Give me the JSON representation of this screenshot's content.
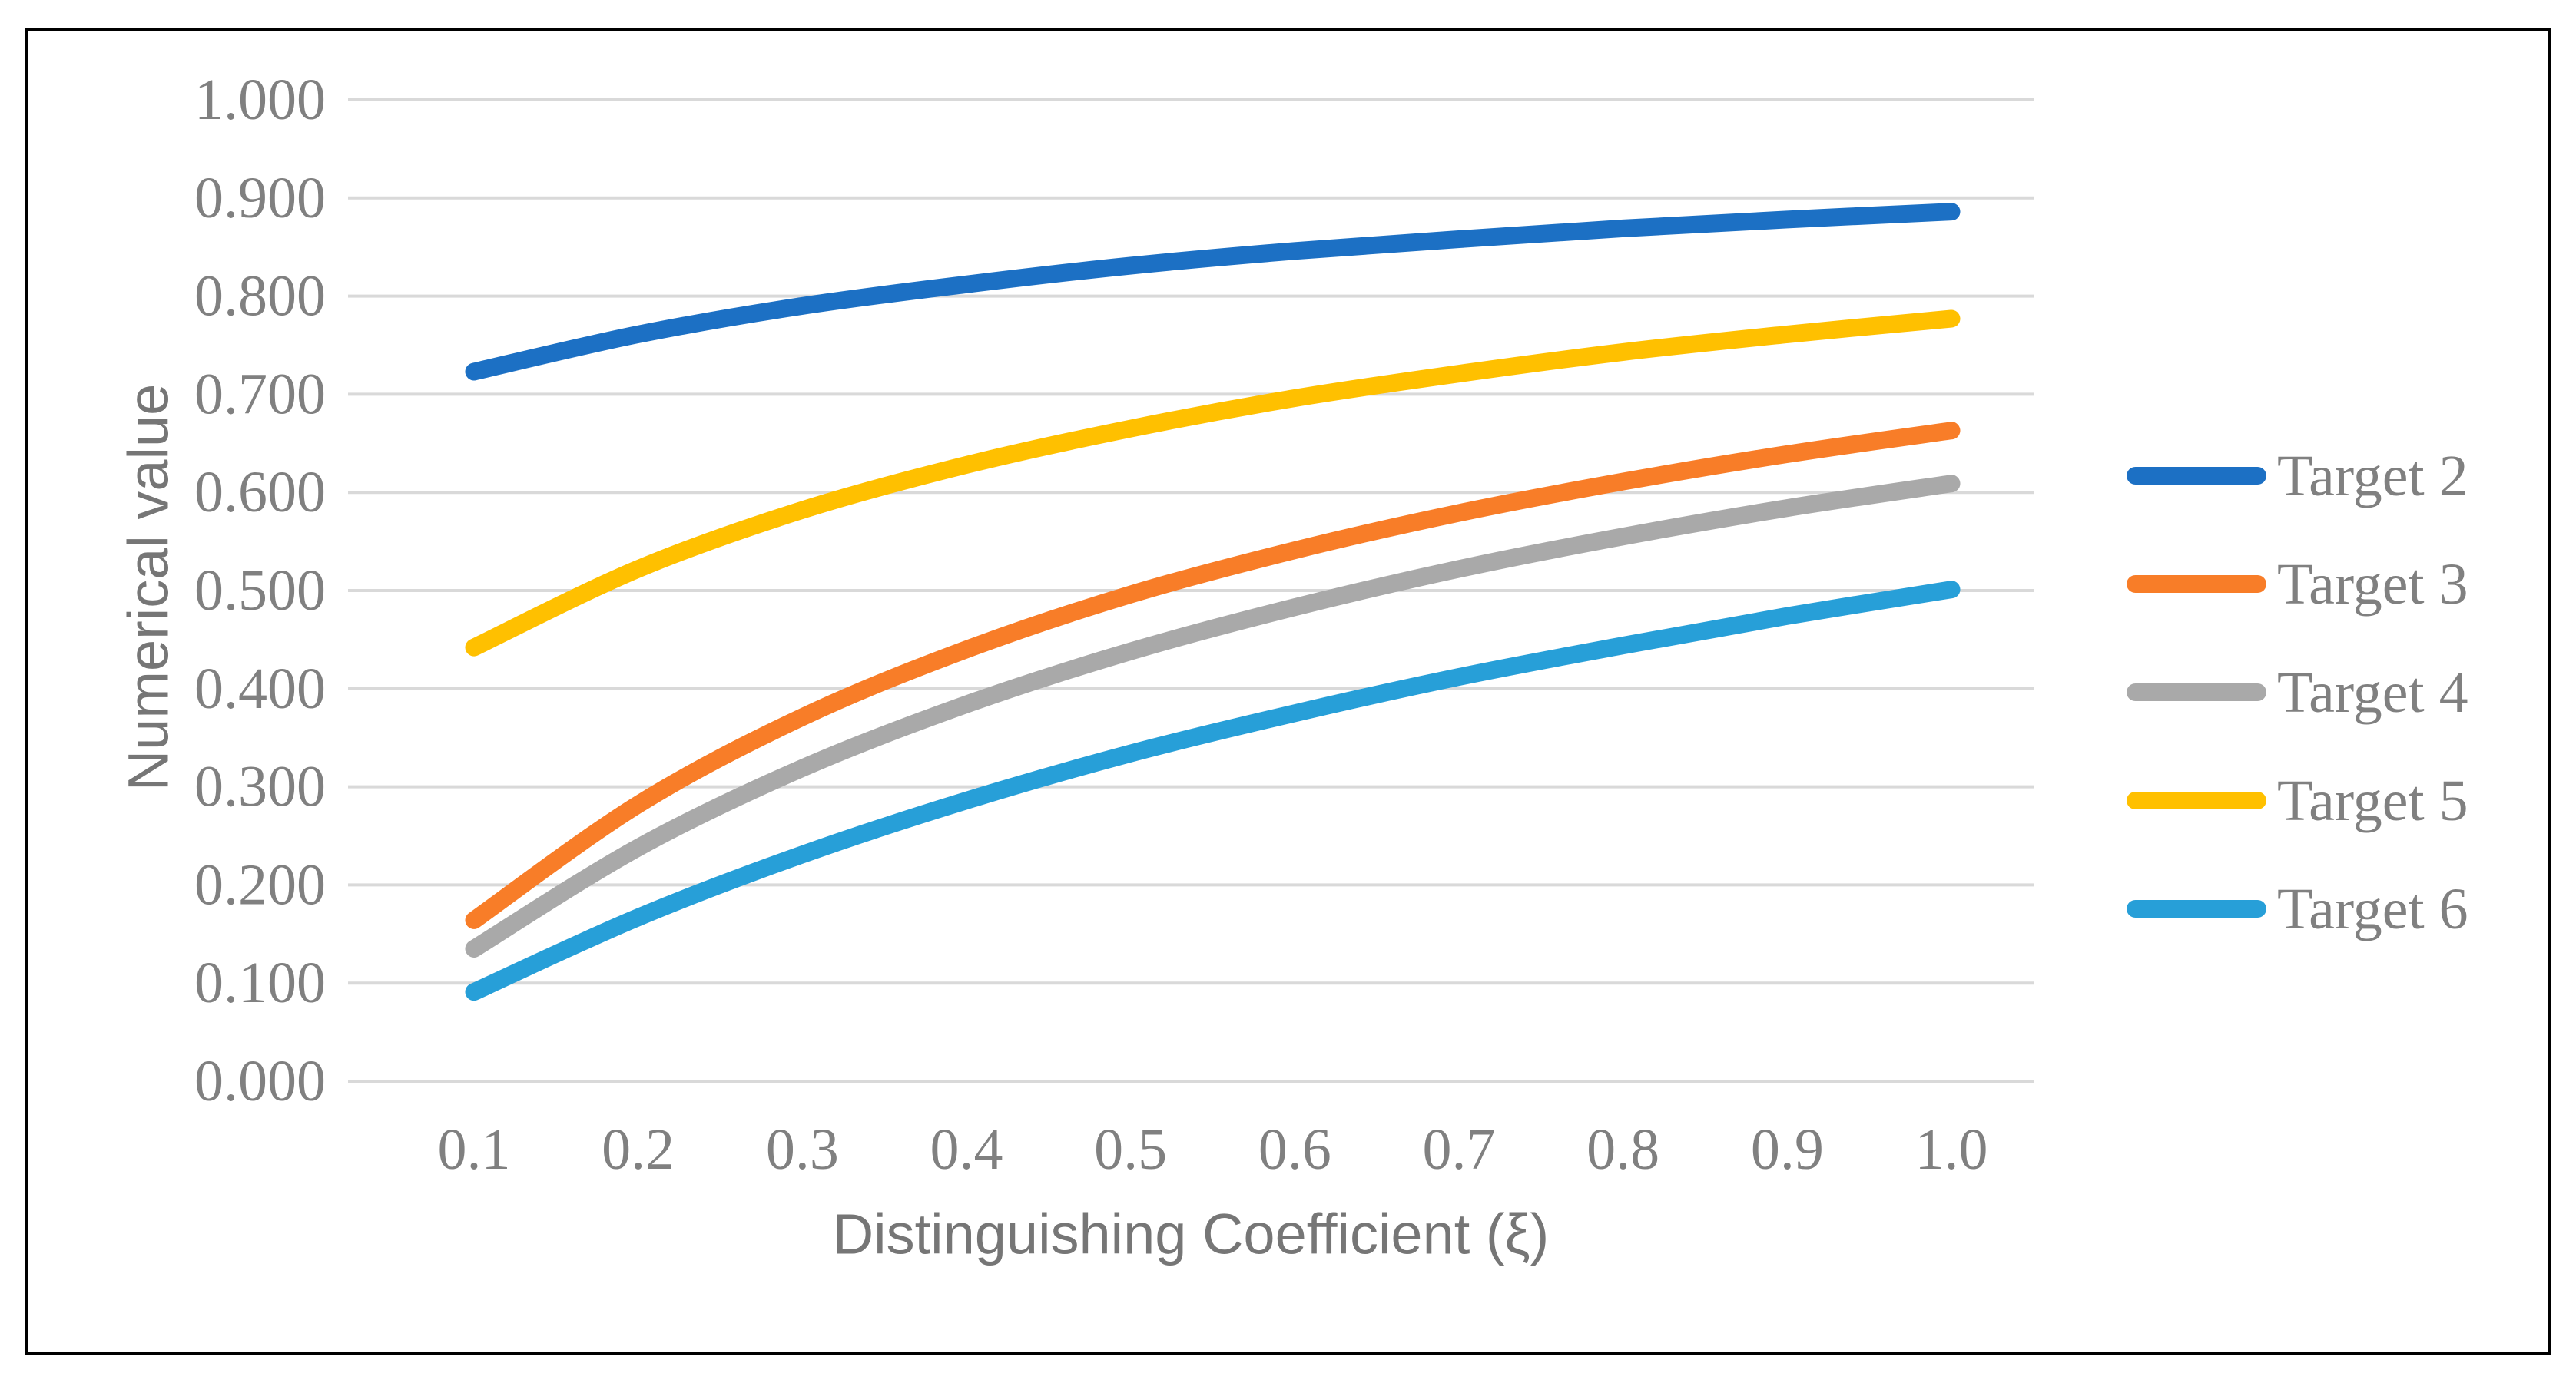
{
  "figure": {
    "background": "#FFFFFF",
    "border_color": "#000000"
  },
  "chart_data": {
    "type": "line",
    "title": "",
    "xlabel": "Distinguishing Coefficient (ξ)",
    "ylabel": "Numerical value",
    "x": [
      0.1,
      0.2,
      0.3,
      0.4,
      0.5,
      0.6,
      0.7,
      0.8,
      0.9,
      1.0
    ],
    "xtick_labels": [
      "0.1",
      "0.2",
      "0.3",
      "0.4",
      "0.5",
      "0.6",
      "0.7",
      "0.8",
      "0.9",
      "1.0"
    ],
    "ytick_labels": [
      "0.000",
      "0.100",
      "0.200",
      "0.300",
      "0.400",
      "0.500",
      "0.600",
      "0.700",
      "0.800",
      "0.900",
      "1.000"
    ],
    "ylim": [
      0.0,
      1.0
    ],
    "ytick_step": 0.1,
    "grid": true,
    "gridline_color": "#D9D9D9",
    "tick_label_color": "#808080",
    "axis_title_color": "#767676",
    "legend_position": "right",
    "series": [
      {
        "name": "Target 2",
        "color": "#1C70C4",
        "values": [
          0.723,
          0.761,
          0.79,
          0.812,
          0.831,
          0.846,
          0.858,
          0.869,
          0.878,
          0.886
        ]
      },
      {
        "name": "Target 3",
        "color": "#F87D28",
        "values": [
          0.164,
          0.282,
          0.371,
          0.44,
          0.496,
          0.541,
          0.579,
          0.611,
          0.639,
          0.663
        ]
      },
      {
        "name": "Target 4",
        "color": "#A9A9A9",
        "values": [
          0.135,
          0.238,
          0.319,
          0.384,
          0.438,
          0.483,
          0.522,
          0.555,
          0.584,
          0.609
        ]
      },
      {
        "name": "Target 5",
        "color": "#FFC000",
        "values": [
          0.442,
          0.522,
          0.582,
          0.628,
          0.665,
          0.696,
          0.721,
          0.743,
          0.761,
          0.777
        ]
      },
      {
        "name": "Target 6",
        "color": "#279FD8",
        "values": [
          0.091,
          0.167,
          0.231,
          0.286,
          0.334,
          0.375,
          0.412,
          0.444,
          0.474,
          0.501
        ]
      }
    ]
  }
}
